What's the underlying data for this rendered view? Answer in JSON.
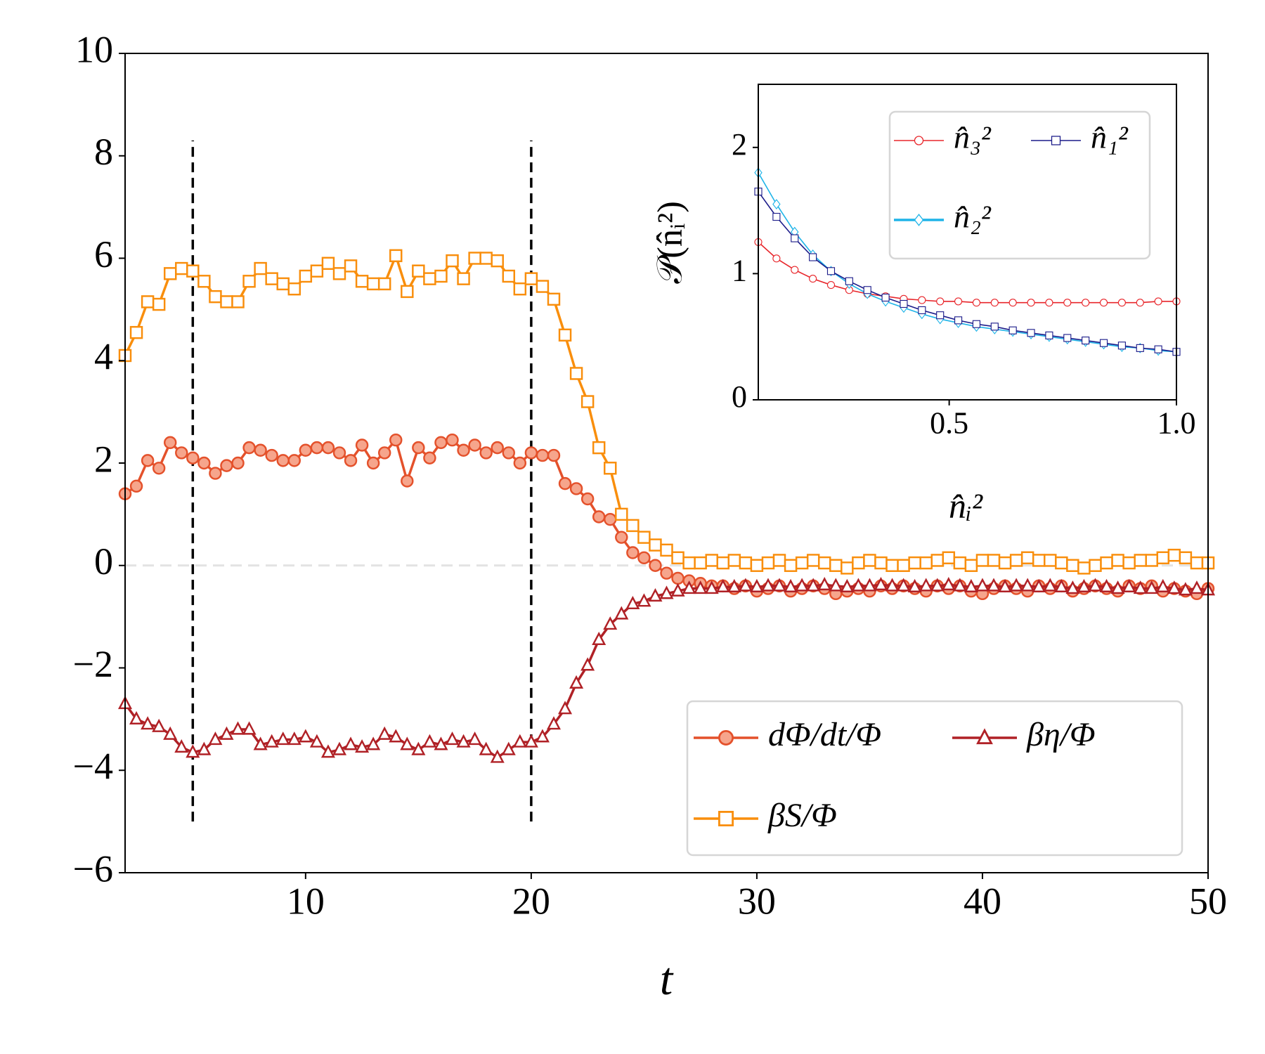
{
  "chart_data": [
    {
      "type": "line",
      "xlabel": "t",
      "xlim": [
        2,
        50
      ],
      "ylim": [
        -6,
        10
      ],
      "xticks": [
        10,
        20,
        30,
        40,
        50
      ],
      "yticks": [
        {
          "value": -6,
          "label": "−6"
        },
        {
          "value": -4,
          "label": "−4"
        },
        {
          "value": -2,
          "label": "−2"
        },
        0,
        2,
        4,
        6,
        8,
        10
      ],
      "vlines": [
        5,
        20
      ],
      "vline_ylim": [
        -5,
        8.3
      ],
      "hline": 0,
      "legend": "lower right",
      "x": [
        2,
        2.5,
        3,
        3.5,
        4,
        4.5,
        5,
        5.5,
        6,
        6.5,
        7,
        7.5,
        8,
        8.5,
        9,
        9.5,
        10,
        10.5,
        11,
        11.5,
        12,
        12.5,
        13,
        13.5,
        14,
        14.5,
        15,
        15.5,
        16,
        16.5,
        17,
        17.5,
        18,
        18.5,
        19,
        19.5,
        20,
        20.5,
        21,
        21.5,
        22,
        22.5,
        23,
        23.5,
        24,
        24.5,
        25,
        25.5,
        26,
        26.5,
        27,
        27.5,
        28,
        28.5,
        29,
        29.5,
        30,
        30.5,
        31,
        31.5,
        32,
        32.5,
        33,
        33.5,
        34,
        34.5,
        35,
        35.5,
        36,
        36.5,
        37,
        37.5,
        38,
        38.5,
        39,
        39.5,
        40,
        40.5,
        41,
        41.5,
        42,
        42.5,
        43,
        43.5,
        44,
        44.5,
        45,
        45.5,
        46,
        46.5,
        47,
        47.5,
        48,
        48.5,
        49,
        49.5,
        50
      ],
      "series": [
        {
          "name": "dΦ/dt/Φ",
          "color": "#e4512b",
          "marker": "circle",
          "values": [
            1.4,
            1.55,
            2.05,
            1.9,
            2.4,
            2.2,
            2.1,
            2.0,
            1.8,
            1.95,
            2.0,
            2.3,
            2.25,
            2.15,
            2.05,
            2.05,
            2.25,
            2.3,
            2.3,
            2.2,
            2.05,
            2.35,
            2.0,
            2.2,
            2.45,
            1.65,
            2.3,
            2.1,
            2.4,
            2.45,
            2.25,
            2.35,
            2.2,
            2.3,
            2.2,
            2.0,
            2.2,
            2.15,
            2.15,
            1.6,
            1.5,
            1.3,
            0.95,
            0.9,
            0.55,
            0.25,
            0.15,
            0.0,
            -0.15,
            -0.25,
            -0.3,
            -0.35,
            -0.4,
            -0.4,
            -0.45,
            -0.4,
            -0.5,
            -0.45,
            -0.4,
            -0.5,
            -0.45,
            -0.4,
            -0.45,
            -0.55,
            -0.5,
            -0.45,
            -0.5,
            -0.4,
            -0.45,
            -0.4,
            -0.45,
            -0.5,
            -0.4,
            -0.45,
            -0.4,
            -0.5,
            -0.55,
            -0.45,
            -0.4,
            -0.45,
            -0.5,
            -0.4,
            -0.45,
            -0.4,
            -0.5,
            -0.45,
            -0.4,
            -0.45,
            -0.5,
            -0.4,
            -0.45,
            -0.4,
            -0.5,
            -0.45,
            -0.5,
            -0.55,
            -0.45
          ]
        },
        {
          "name": "βS/Φ",
          "color": "#f98e0c",
          "marker": "square",
          "values": [
            4.1,
            4.55,
            5.15,
            5.1,
            5.7,
            5.8,
            5.75,
            5.55,
            5.25,
            5.15,
            5.15,
            5.55,
            5.8,
            5.6,
            5.5,
            5.4,
            5.65,
            5.75,
            5.9,
            5.7,
            5.85,
            5.55,
            5.5,
            5.5,
            6.05,
            5.35,
            5.75,
            5.6,
            5.65,
            5.95,
            5.6,
            6.0,
            6.0,
            5.95,
            5.65,
            5.4,
            5.6,
            5.45,
            5.2,
            4.5,
            3.75,
            3.2,
            2.3,
            1.9,
            1.0,
            0.78,
            0.55,
            0.4,
            0.3,
            0.15,
            0.05,
            0.05,
            0.1,
            0.05,
            0.1,
            0.05,
            0.0,
            0.05,
            0.1,
            0.0,
            0.05,
            0.1,
            0.05,
            0.0,
            -0.05,
            0.05,
            0.1,
            0.05,
            0.0,
            0.0,
            0.05,
            0.05,
            0.1,
            0.15,
            0.05,
            0.0,
            0.1,
            0.1,
            0.05,
            0.1,
            0.15,
            0.1,
            0.1,
            0.05,
            0.0,
            -0.05,
            0.0,
            0.05,
            0.1,
            0.05,
            0.1,
            0.1,
            0.15,
            0.2,
            0.15,
            0.05,
            0.05
          ]
        },
        {
          "name": "βη/Φ",
          "color": "#b02126",
          "marker": "triangle",
          "values": [
            -2.7,
            -3.0,
            -3.1,
            -3.15,
            -3.3,
            -3.55,
            -3.65,
            -3.6,
            -3.4,
            -3.3,
            -3.2,
            -3.2,
            -3.5,
            -3.45,
            -3.4,
            -3.4,
            -3.35,
            -3.45,
            -3.65,
            -3.6,
            -3.5,
            -3.55,
            -3.5,
            -3.3,
            -3.35,
            -3.5,
            -3.6,
            -3.45,
            -3.5,
            -3.4,
            -3.45,
            -3.4,
            -3.6,
            -3.75,
            -3.6,
            -3.45,
            -3.45,
            -3.35,
            -3.1,
            -2.8,
            -2.3,
            -1.95,
            -1.45,
            -1.15,
            -0.95,
            -0.75,
            -0.7,
            -0.6,
            -0.55,
            -0.5,
            -0.45,
            -0.45,
            -0.45,
            -0.42,
            -0.42,
            -0.4,
            -0.42,
            -0.4,
            -0.4,
            -0.42,
            -0.4,
            -0.4,
            -0.38,
            -0.4,
            -0.42,
            -0.4,
            -0.4,
            -0.38,
            -0.4,
            -0.4,
            -0.42,
            -0.4,
            -0.4,
            -0.38,
            -0.4,
            -0.42,
            -0.4,
            -0.4,
            -0.42,
            -0.4,
            -0.4,
            -0.42,
            -0.4,
            -0.42,
            -0.45,
            -0.42,
            -0.4,
            -0.42,
            -0.45,
            -0.42,
            -0.45,
            -0.45,
            -0.42,
            -0.45,
            -0.48,
            -0.45,
            -0.48
          ]
        }
      ]
    },
    {
      "type": "line",
      "xlabel": "n̂ᵢ²",
      "ylabel": "𝒫(n̂ᵢ²)",
      "xlim": [
        0.08,
        1
      ],
      "ylim": [
        0,
        2.5
      ],
      "xticks": [
        0.5,
        {
          "value": 1,
          "label": "1.0"
        }
      ],
      "yticks": [
        0,
        1,
        2
      ],
      "legend": "upper right",
      "x": [
        0.08,
        0.12,
        0.16,
        0.2,
        0.24,
        0.28,
        0.32,
        0.36,
        0.4,
        0.44,
        0.48,
        0.52,
        0.56,
        0.6,
        0.64,
        0.68,
        0.72,
        0.76,
        0.8,
        0.84,
        0.88,
        0.92,
        0.96,
        1.0
      ],
      "series": [
        {
          "name": "n̂₃²",
          "color": "#e8262b",
          "marker": "circle",
          "values": [
            1.25,
            1.12,
            1.03,
            0.96,
            0.91,
            0.87,
            0.84,
            0.82,
            0.8,
            0.79,
            0.78,
            0.78,
            0.77,
            0.77,
            0.77,
            0.77,
            0.77,
            0.77,
            0.77,
            0.77,
            0.77,
            0.77,
            0.78,
            0.78
          ]
        },
        {
          "name": "n̂₂²",
          "color": "#1fb4e8",
          "marker": "diamond",
          "values": [
            1.8,
            1.55,
            1.33,
            1.15,
            1.02,
            0.92,
            0.84,
            0.78,
            0.73,
            0.68,
            0.64,
            0.61,
            0.58,
            0.56,
            0.54,
            0.52,
            0.5,
            0.48,
            0.46,
            0.44,
            0.42,
            0.41,
            0.39,
            0.38
          ]
        },
        {
          "name": "n̂₁²",
          "color": "#1c1c8a",
          "marker": "square",
          "values": [
            1.65,
            1.45,
            1.28,
            1.13,
            1.02,
            0.94,
            0.87,
            0.81,
            0.76,
            0.71,
            0.67,
            0.63,
            0.6,
            0.58,
            0.55,
            0.53,
            0.51,
            0.49,
            0.47,
            0.45,
            0.43,
            0.41,
            0.4,
            0.38
          ]
        }
      ]
    }
  ]
}
